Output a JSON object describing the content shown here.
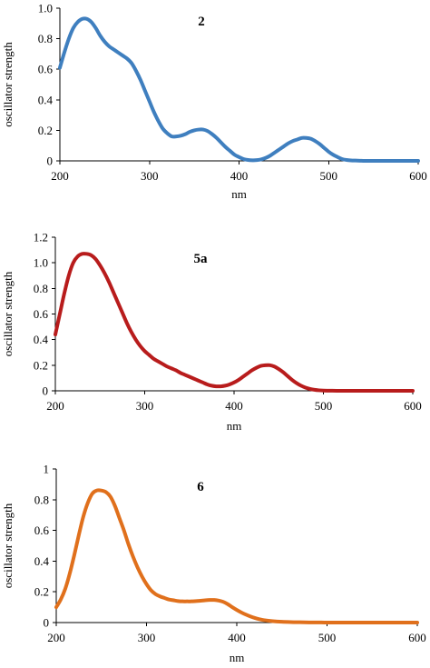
{
  "chart_data": [
    {
      "type": "line",
      "title": "2",
      "xlabel": "nm",
      "ylabel": "oscillator strength",
      "xlim": [
        200,
        600
      ],
      "ylim": [
        0,
        1.0
      ],
      "xticks": [
        "200",
        "300",
        "400",
        "500",
        "600"
      ],
      "yticks": [
        "0",
        "0.2",
        "0.4",
        "0.6",
        "0.8",
        "1.0"
      ],
      "xtick_values": [
        200,
        300,
        400,
        500,
        600
      ],
      "ytick_values": [
        0,
        0.2,
        0.4,
        0.6,
        0.8,
        1.0
      ],
      "grid": false,
      "color": "#3f7fbf",
      "series": [
        {
          "x": [
            200,
            205,
            210,
            215,
            220,
            225,
            230,
            235,
            240,
            245,
            250,
            255,
            260,
            265,
            270,
            275,
            280,
            285,
            290,
            295,
            300,
            305,
            310,
            315,
            320,
            325,
            330,
            335,
            340,
            345,
            350,
            355,
            360,
            365,
            370,
            375,
            380,
            385,
            390,
            395,
            400,
            405,
            410,
            415,
            420,
            425,
            430,
            435,
            440,
            445,
            450,
            455,
            460,
            465,
            470,
            475,
            480,
            485,
            490,
            495,
            500,
            505,
            510,
            515,
            520,
            525,
            530,
            535,
            540,
            545,
            550,
            560,
            570,
            580,
            590,
            600
          ],
          "y": [
            0.61,
            0.71,
            0.8,
            0.87,
            0.91,
            0.93,
            0.93,
            0.91,
            0.87,
            0.82,
            0.78,
            0.75,
            0.73,
            0.71,
            0.69,
            0.67,
            0.64,
            0.59,
            0.53,
            0.46,
            0.39,
            0.32,
            0.26,
            0.21,
            0.18,
            0.16,
            0.16,
            0.165,
            0.175,
            0.19,
            0.2,
            0.205,
            0.205,
            0.195,
            0.175,
            0.15,
            0.12,
            0.09,
            0.065,
            0.04,
            0.025,
            0.012,
            0.006,
            0.004,
            0.005,
            0.01,
            0.02,
            0.035,
            0.055,
            0.075,
            0.095,
            0.115,
            0.13,
            0.14,
            0.15,
            0.15,
            0.145,
            0.13,
            0.11,
            0.085,
            0.06,
            0.04,
            0.025,
            0.012,
            0.006,
            0.003,
            0.002,
            0.001,
            0,
            0,
            0,
            0,
            0,
            0,
            0,
            0
          ]
        }
      ]
    },
    {
      "type": "line",
      "title": "5a",
      "xlabel": "nm",
      "ylabel": "oscillator strength",
      "xlim": [
        200,
        600
      ],
      "ylim": [
        0,
        1.2
      ],
      "xticks": [
        "200",
        "300",
        "400",
        "500",
        "600"
      ],
      "yticks": [
        "0",
        "0.2",
        "0.4",
        "0.6",
        "0.8",
        "1.0",
        "1.2"
      ],
      "xtick_values": [
        200,
        300,
        400,
        500,
        600
      ],
      "ytick_values": [
        0,
        0.2,
        0.4,
        0.6,
        0.8,
        1.0,
        1.2
      ],
      "grid": false,
      "color": "#b81c1c",
      "series": [
        {
          "x": [
            200,
            205,
            210,
            215,
            220,
            225,
            230,
            235,
            240,
            245,
            250,
            255,
            260,
            265,
            270,
            275,
            280,
            285,
            290,
            295,
            300,
            305,
            310,
            315,
            320,
            325,
            330,
            335,
            340,
            345,
            350,
            355,
            360,
            365,
            370,
            375,
            380,
            385,
            390,
            395,
            400,
            405,
            410,
            415,
            420,
            425,
            430,
            435,
            440,
            445,
            450,
            455,
            460,
            465,
            470,
            475,
            480,
            485,
            490,
            495,
            500,
            510,
            520,
            530,
            540,
            550,
            560,
            570,
            580,
            590,
            600
          ],
          "y": [
            0.44,
            0.6,
            0.76,
            0.9,
            1.0,
            1.05,
            1.07,
            1.07,
            1.06,
            1.03,
            0.98,
            0.92,
            0.85,
            0.77,
            0.69,
            0.61,
            0.53,
            0.46,
            0.4,
            0.35,
            0.31,
            0.28,
            0.25,
            0.23,
            0.21,
            0.19,
            0.175,
            0.16,
            0.14,
            0.125,
            0.11,
            0.095,
            0.08,
            0.065,
            0.05,
            0.04,
            0.035,
            0.035,
            0.04,
            0.05,
            0.065,
            0.085,
            0.11,
            0.135,
            0.16,
            0.18,
            0.195,
            0.2,
            0.2,
            0.19,
            0.17,
            0.145,
            0.115,
            0.085,
            0.06,
            0.04,
            0.025,
            0.015,
            0.008,
            0.004,
            0.002,
            0.001,
            0,
            0,
            0,
            0,
            0,
            0,
            0,
            0,
            0
          ]
        }
      ]
    },
    {
      "type": "line",
      "title": "6",
      "xlabel": "nm",
      "ylabel": "oscillator strength",
      "xlim": [
        200,
        600
      ],
      "ylim": [
        0,
        1.0
      ],
      "xticks": [
        "200",
        "300",
        "400",
        "500",
        "600"
      ],
      "yticks": [
        "0",
        "0.2",
        "0.4",
        "0.6",
        "0.8",
        "1"
      ],
      "xtick_values": [
        200,
        300,
        400,
        500,
        600
      ],
      "ytick_values": [
        0,
        0.2,
        0.4,
        0.6,
        0.8,
        1.0
      ],
      "grid": false,
      "color": "#e0701c",
      "series": [
        {
          "x": [
            200,
            205,
            210,
            215,
            220,
            225,
            230,
            235,
            240,
            245,
            250,
            255,
            260,
            265,
            270,
            275,
            280,
            285,
            290,
            295,
            300,
            305,
            310,
            315,
            320,
            325,
            330,
            335,
            340,
            345,
            350,
            355,
            360,
            365,
            370,
            375,
            380,
            385,
            390,
            395,
            400,
            405,
            410,
            415,
            420,
            425,
            430,
            440,
            450,
            460,
            470,
            480,
            490,
            500,
            520,
            540,
            560,
            580,
            600
          ],
          "y": [
            0.1,
            0.15,
            0.22,
            0.32,
            0.44,
            0.57,
            0.69,
            0.78,
            0.84,
            0.86,
            0.86,
            0.85,
            0.82,
            0.76,
            0.68,
            0.6,
            0.51,
            0.43,
            0.36,
            0.3,
            0.25,
            0.21,
            0.185,
            0.17,
            0.16,
            0.15,
            0.145,
            0.14,
            0.138,
            0.138,
            0.138,
            0.14,
            0.142,
            0.145,
            0.147,
            0.147,
            0.143,
            0.135,
            0.12,
            0.1,
            0.082,
            0.066,
            0.052,
            0.04,
            0.03,
            0.022,
            0.016,
            0.009,
            0.005,
            0.003,
            0.002,
            0.001,
            0.001,
            0,
            0,
            0,
            0,
            0,
            0
          ]
        }
      ]
    }
  ]
}
